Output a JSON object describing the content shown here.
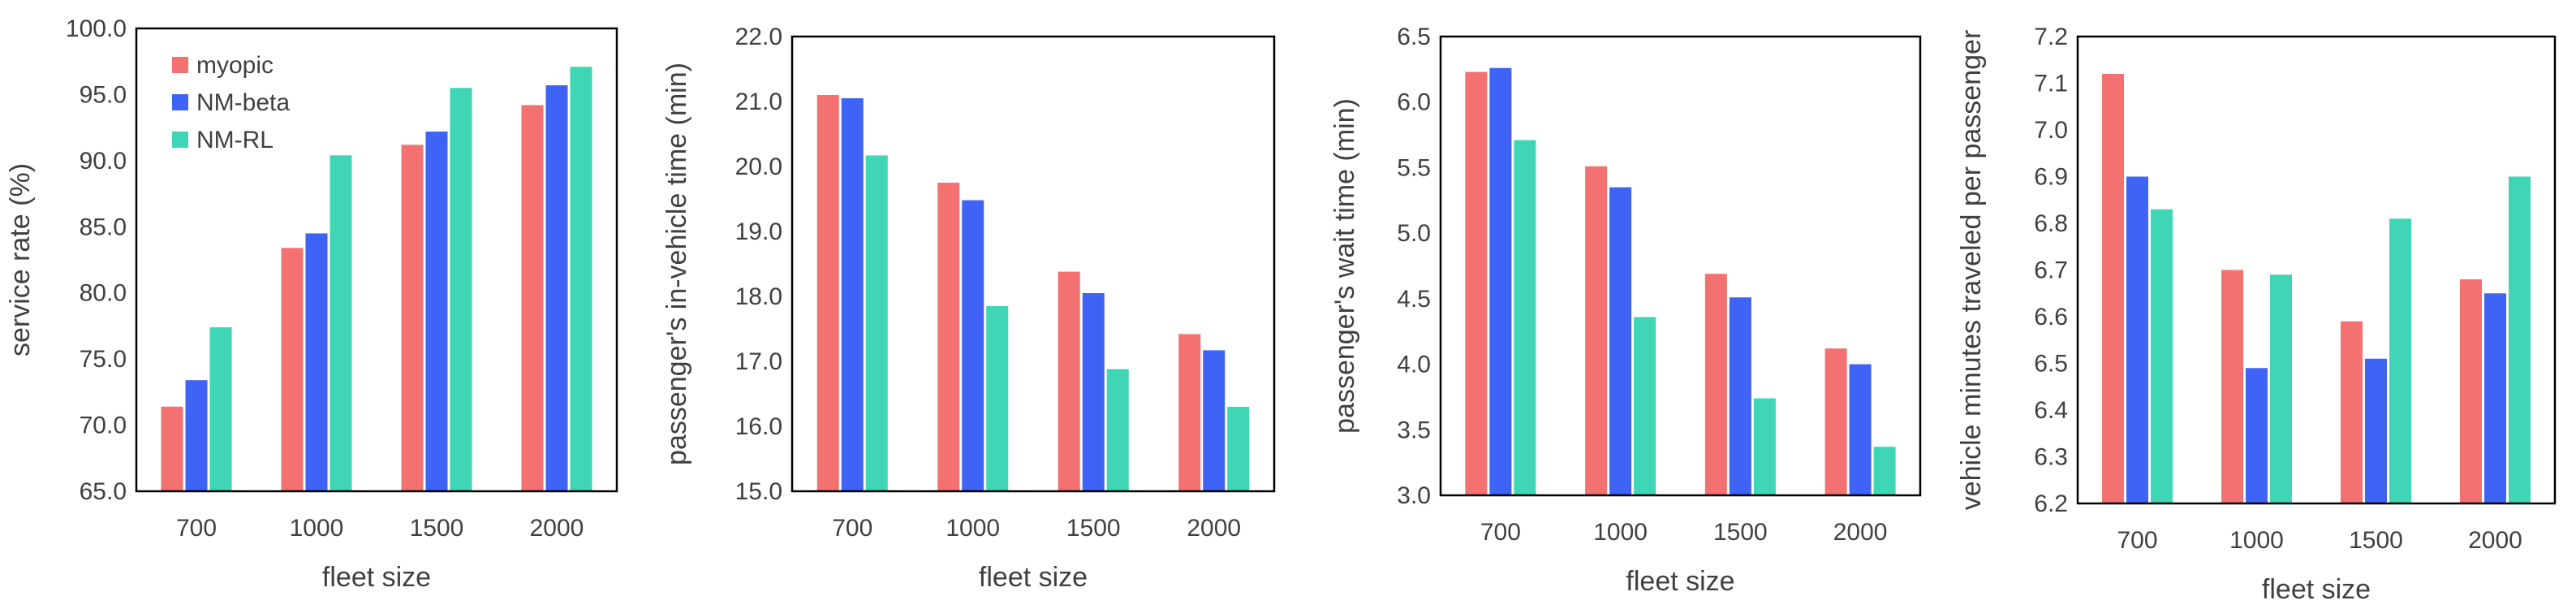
{
  "colors": {
    "myopic": "#f47171",
    "NM-beta": "#3e63f5",
    "NM-RL": "#3fd6b6"
  },
  "legend": [
    "myopic",
    "NM-beta",
    "NM-RL"
  ],
  "chart_data": [
    {
      "type": "bar",
      "title": "",
      "xlabel": "fleet size",
      "ylabel": "service rate (%)",
      "categories": [
        "700",
        "1000",
        "1500",
        "2000"
      ],
      "ylim": [
        65,
        100
      ],
      "yticks": [
        "65.0",
        "70.0",
        "75.0",
        "80.0",
        "85.0",
        "90.0",
        "95.0",
        "100.0"
      ],
      "legend_position": "top-left",
      "series": [
        {
          "name": "myopic",
          "values": [
            71.4,
            83.4,
            91.2,
            94.2
          ]
        },
        {
          "name": "NM-beta",
          "values": [
            73.4,
            84.5,
            92.2,
            95.7
          ]
        },
        {
          "name": "NM-RL",
          "values": [
            77.4,
            90.4,
            95.5,
            97.1
          ]
        }
      ]
    },
    {
      "type": "bar",
      "title": "",
      "xlabel": "fleet size",
      "ylabel": "passenger's in-vehicle time (min)",
      "categories": [
        "700",
        "1000",
        "1500",
        "2000"
      ],
      "ylim": [
        15,
        22
      ],
      "yticks": [
        "15.0",
        "16.0",
        "17.0",
        "18.0",
        "19.0",
        "20.0",
        "21.0",
        "22.0"
      ],
      "series": [
        {
          "name": "myopic",
          "values": [
            21.1,
            19.75,
            18.38,
            17.42
          ]
        },
        {
          "name": "NM-beta",
          "values": [
            21.05,
            19.48,
            18.05,
            17.17
          ]
        },
        {
          "name": "NM-RL",
          "values": [
            20.17,
            17.85,
            16.88,
            16.3
          ]
        }
      ]
    },
    {
      "type": "bar",
      "title": "",
      "xlabel": "fleet size",
      "ylabel": "passenger's wait time (min)",
      "categories": [
        "700",
        "1000",
        "1500",
        "2000"
      ],
      "ylim": [
        3,
        6.5
      ],
      "yticks": [
        "3.0",
        "3.5",
        "4.0",
        "4.5",
        "5.0",
        "5.5",
        "6.0",
        "6.5"
      ],
      "series": [
        {
          "name": "myopic",
          "values": [
            6.23,
            5.51,
            4.69,
            4.12
          ]
        },
        {
          "name": "NM-beta",
          "values": [
            6.26,
            5.35,
            4.51,
            4.0
          ]
        },
        {
          "name": "NM-RL",
          "values": [
            5.71,
            4.36,
            3.74,
            3.37
          ]
        }
      ]
    },
    {
      "type": "bar",
      "title": "",
      "xlabel": "fleet size",
      "ylabel": "vehicle minutes traveled per passenger",
      "categories": [
        "700",
        "1000",
        "1500",
        "2000"
      ],
      "ylim": [
        6.2,
        7.2
      ],
      "yticks": [
        "6.2",
        "6.3",
        "6.4",
        "6.5",
        "6.6",
        "6.7",
        "6.8",
        "6.9",
        "7.0",
        "7.1",
        "7.2"
      ],
      "series": [
        {
          "name": "myopic",
          "values": [
            7.12,
            6.7,
            6.59,
            6.68
          ]
        },
        {
          "name": "NM-beta",
          "values": [
            6.9,
            6.49,
            6.51,
            6.65
          ]
        },
        {
          "name": "NM-RL",
          "values": [
            6.83,
            6.69,
            6.81,
            6.9
          ]
        }
      ]
    }
  ]
}
